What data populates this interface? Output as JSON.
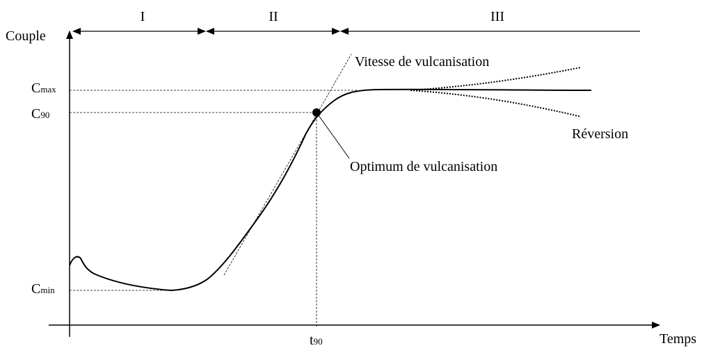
{
  "axes": {
    "y_label": "Couple",
    "x_label": "Temps"
  },
  "phases": [
    "I",
    "II",
    "III"
  ],
  "levels": {
    "cmax": {
      "base": "C",
      "sub": "max"
    },
    "c90": {
      "base": "C",
      "sub": "90"
    },
    "cmin": {
      "base": "C",
      "sub": "min"
    },
    "t90": {
      "base": "t",
      "sub": "90"
    }
  },
  "annotations": {
    "rate": "Vitesse de vulcanisation",
    "optimum": "Optimum de vulcanisation",
    "reversion": "Réversion"
  }
}
